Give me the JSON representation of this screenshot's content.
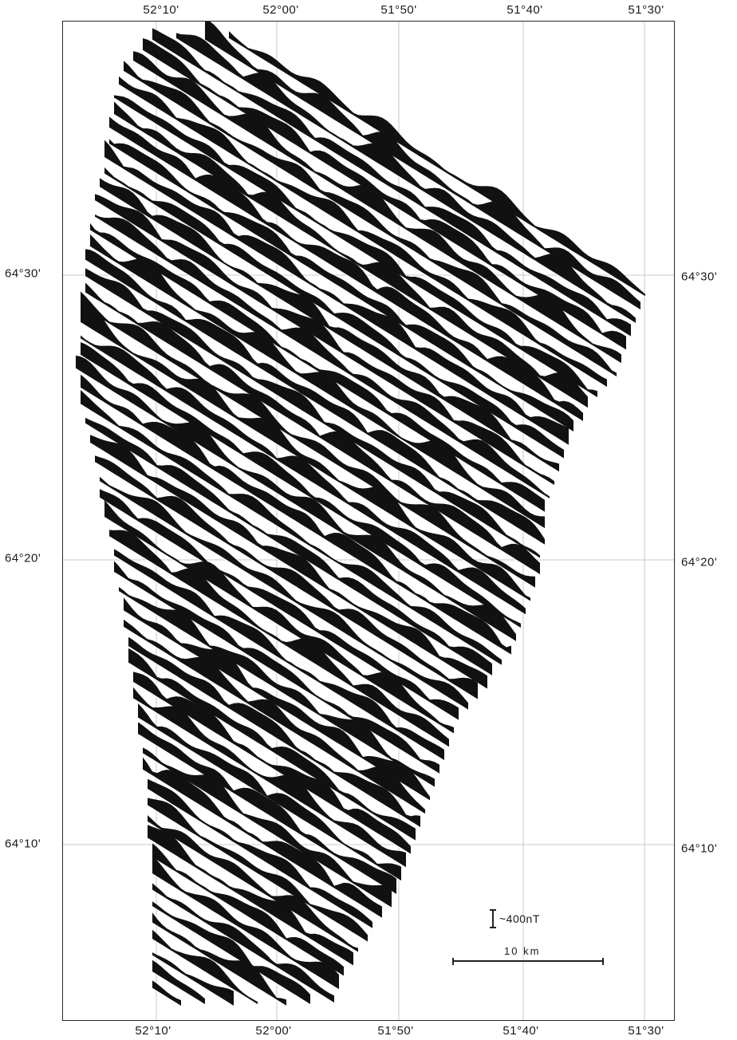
{
  "map": {
    "longitude_labels": [
      "52°10'",
      "52°00'",
      "51°50'",
      "51°40'",
      "51°30'"
    ],
    "latitude_labels": [
      "64°30'",
      "64°20'",
      "64°10'"
    ]
  },
  "scale": {
    "amplitude_label": "~400nT",
    "distance_label": "10 km"
  },
  "colors": {
    "anomaly_fill": "#111111",
    "profile_line": "#ffffff",
    "grid": "#c8c8c8",
    "frame": "#2a2a2a"
  }
}
